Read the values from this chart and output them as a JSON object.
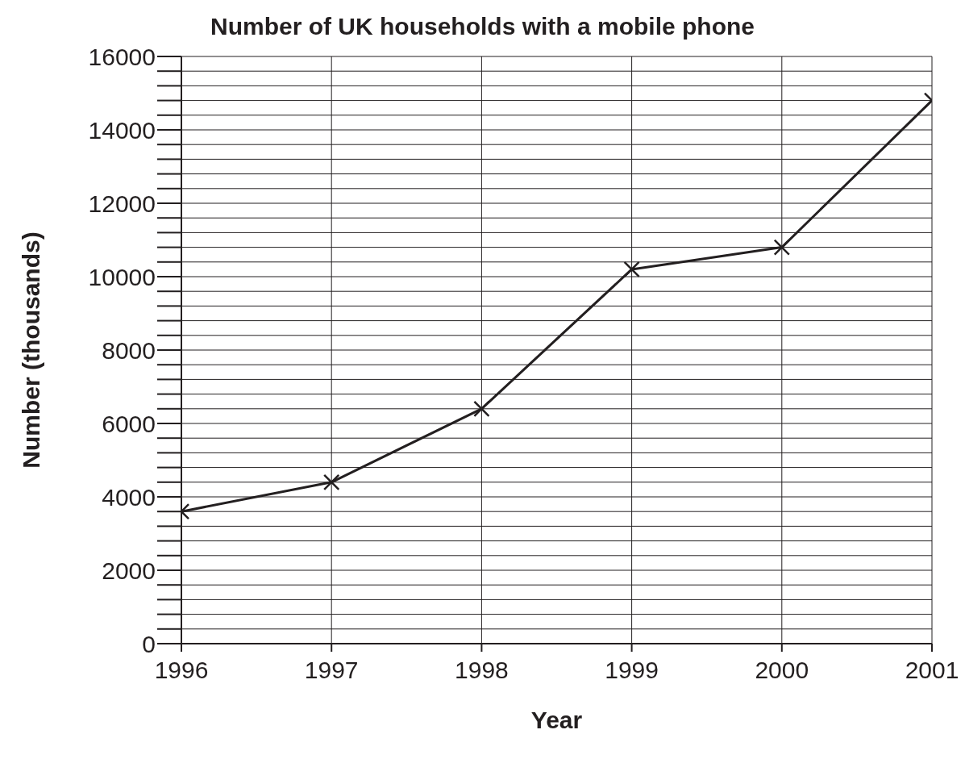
{
  "chart_data": {
    "type": "line",
    "title": "Number of UK households with a mobile phone",
    "xlabel": "Year",
    "ylabel": "Number (thousands)",
    "x": [
      1996,
      1997,
      1998,
      1999,
      2000,
      2001
    ],
    "series": [
      {
        "color": "#231f20",
        "values": [
          3600,
          4400,
          6400,
          10200,
          10800,
          14800
        ]
      }
    ],
    "xlim": [
      1996,
      2001
    ],
    "xticks": [
      1996,
      1997,
      1998,
      1999,
      2000,
      2001
    ],
    "ylim": [
      0,
      16000
    ],
    "yticks": [
      0,
      {
        "value": 400,
        "label": null
      },
      {
        "value": 800,
        "label": null
      },
      {
        "value": 1200,
        "label": null
      },
      {
        "value": 1600,
        "label": null
      },
      2000,
      {
        "value": 2400,
        "label": null
      },
      {
        "value": 2800,
        "label": null
      },
      {
        "value": 3200,
        "label": null
      },
      {
        "value": 3600,
        "label": null
      },
      4000,
      {
        "value": 4400,
        "label": null
      },
      {
        "value": 4800,
        "label": null
      },
      {
        "value": 5200,
        "label": null
      },
      {
        "value": 5600,
        "label": null
      },
      6000,
      {
        "value": 6400,
        "label": null
      },
      {
        "value": 6800,
        "label": null
      },
      {
        "value": 7200,
        "label": null
      },
      {
        "value": 7600,
        "label": null
      },
      8000,
      {
        "value": 8400,
        "label": null
      },
      {
        "value": 8800,
        "label": null
      },
      {
        "value": 9200,
        "label": null
      },
      {
        "value": 9600,
        "label": null
      },
      10000,
      {
        "value": 10400,
        "label": null
      },
      {
        "value": 10800,
        "label": null
      },
      {
        "value": 11200,
        "label": null
      },
      {
        "value": 11600,
        "label": null
      },
      12000,
      {
        "value": 12400,
        "label": null
      },
      {
        "value": 12800,
        "label": null
      },
      {
        "value": 13200,
        "label": null
      },
      {
        "value": 13600,
        "label": null
      },
      14000,
      {
        "value": 14400,
        "label": null
      },
      {
        "value": 14800,
        "label": null
      },
      {
        "value": 15200,
        "label": null
      },
      {
        "value": 15600,
        "label": null
      },
      16000
    ],
    "grid": true,
    "marker": "cross",
    "line_style": "solid"
  }
}
